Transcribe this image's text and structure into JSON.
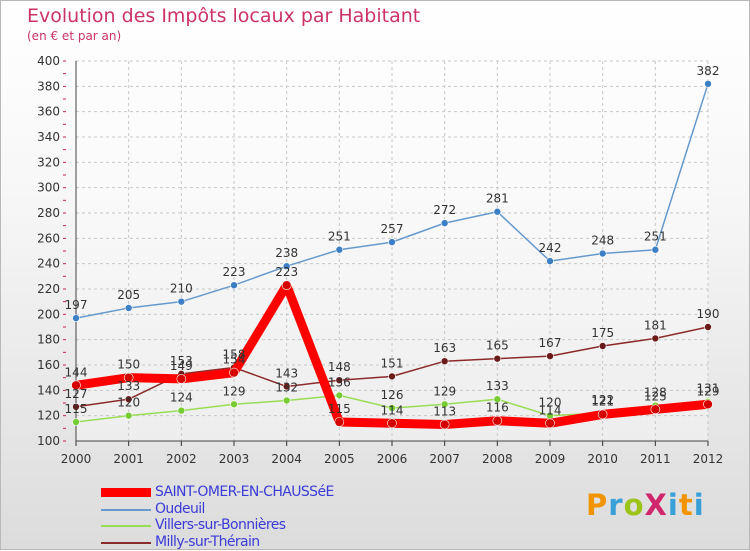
{
  "header": {
    "title": "Evolution des Impôts locaux par Habitant",
    "subtitle": "(en € et par an)"
  },
  "logo": {
    "text": "ProXiti"
  },
  "chart_data": {
    "type": "line",
    "title": "Evolution des Impôts locaux par Habitant",
    "subtitle": "(en € et par an)",
    "x": [
      "2000",
      "2001",
      "2002",
      "2003",
      "2004",
      "2005",
      "2006",
      "2007",
      "2008",
      "2009",
      "2010",
      "2011",
      "2012"
    ],
    "ylim": [
      100,
      400
    ],
    "yticks": [
      100,
      120,
      140,
      160,
      180,
      200,
      220,
      240,
      260,
      280,
      300,
      320,
      340,
      360,
      380,
      400
    ],
    "grid": true,
    "legend_position": "bottom-left",
    "series": [
      {
        "name": "SAINT-OMER-EN-CHAUSSéE",
        "color": "#ff0000",
        "marker": "#d40000",
        "bold": true,
        "values": [
          144,
          150,
          149,
          154,
          223,
          115,
          114,
          113,
          116,
          114,
          121,
          125,
          129
        ],
        "labels": [
          "144",
          "150",
          "149",
          "154",
          "223",
          "115",
          "114",
          "113",
          "116",
          "114",
          "121",
          "125",
          "129"
        ]
      },
      {
        "name": "Oudeuil",
        "color": "#6699cc",
        "marker": "#3d7fc4",
        "bold": false,
        "values": [
          197,
          205,
          210,
          223,
          238,
          251,
          257,
          272,
          281,
          242,
          248,
          251,
          382
        ],
        "labels": [
          "197",
          "205",
          "210",
          "223",
          "238",
          "251",
          "257",
          "272",
          "281",
          "242",
          "248",
          "251",
          "382"
        ]
      },
      {
        "name": "Villers-sur-Bonnières",
        "color": "#99dd55",
        "marker": "#77cc33",
        "bold": false,
        "values": [
          115,
          120,
          124,
          129,
          132,
          136,
          126,
          129,
          133,
          120,
          122,
          128,
          131
        ],
        "labels": [
          "115",
          "120",
          "124",
          "129",
          "132",
          "136",
          "126",
          "129",
          "133",
          "120",
          "122",
          "128",
          "131"
        ]
      },
      {
        "name": "Milly-sur-Thérain",
        "color": "#8b2a2a",
        "marker": "#6b1a1a",
        "bold": false,
        "values": [
          127,
          133,
          153,
          158,
          143,
          148,
          151,
          163,
          165,
          167,
          175,
          181,
          190
        ],
        "labels": [
          "127",
          "133",
          "153",
          "158",
          "143",
          "148",
          "151",
          "163",
          "165",
          "167",
          "175",
          "181",
          "190"
        ]
      }
    ]
  }
}
